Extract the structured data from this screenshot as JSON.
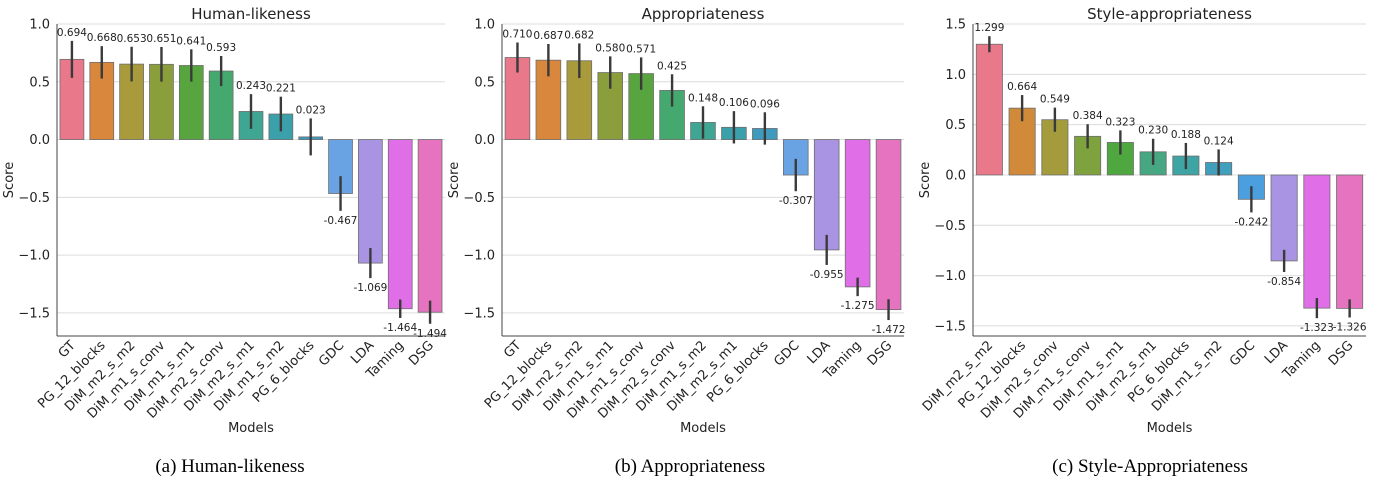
{
  "chart_data": [
    {
      "type": "bar",
      "title": "Human-likeness",
      "xlabel": "Models",
      "ylabel": "Score",
      "ylim": [
        -1.7,
        1.0
      ],
      "yticks": [
        1.0,
        0.5,
        0.0,
        -0.5,
        -1.0,
        -1.5
      ],
      "ytick_labels": [
        "1.0",
        "0.5",
        "0.0",
        "−0.5",
        "−1.0",
        "−1.5"
      ],
      "grid": true,
      "categories": [
        "GT",
        "PG_12_blocks",
        "DiM_m2_s_m2",
        "DiM_m1_s_conv",
        "DiM_m1_s_m1",
        "DiM_m2_s_conv",
        "DiM_m2_s_m1",
        "DiM_m1_s_m2",
        "PG_6_blocks",
        "GDC",
        "LDA",
        "Taming",
        "DSG"
      ],
      "values": [
        0.694,
        0.668,
        0.653,
        0.651,
        0.641,
        0.593,
        0.243,
        0.221,
        0.023,
        -0.467,
        -1.069,
        -1.464,
        -1.494
      ],
      "value_labels": [
        "0.694",
        "0.668",
        "0.653",
        "0.651",
        "0.641",
        "0.593",
        "0.243",
        "0.221",
        "0.023",
        "-0.467",
        "-1.069",
        "-1.464",
        "-1.494"
      ],
      "error": [
        0.16,
        0.14,
        0.15,
        0.15,
        0.14,
        0.13,
        0.15,
        0.15,
        0.16,
        0.15,
        0.13,
        0.08,
        0.1
      ],
      "colors": [
        "#e8788a",
        "#d9873d",
        "#a99b3c",
        "#8a9e3b",
        "#58a53f",
        "#44a86f",
        "#3ea693",
        "#3ca0aa",
        "#3f9bbd",
        "#6aa3e3",
        "#a894e3",
        "#df6ee7",
        "#e573bf"
      ]
    },
    {
      "type": "bar",
      "title": "Appropriateness",
      "xlabel": "Models",
      "ylabel": "Score",
      "ylim": [
        -1.7,
        1.0
      ],
      "yticks": [
        1.0,
        0.5,
        0.0,
        -0.5,
        -1.0,
        -1.5
      ],
      "ytick_labels": [
        "1.0",
        "0.5",
        "0.0",
        "−0.5",
        "−1.0",
        "−1.5"
      ],
      "grid": true,
      "categories": [
        "GT",
        "PG_12_blocks",
        "DiM_m2_s_m2",
        "DiM_m1_s_m1",
        "DiM_m1_s_conv",
        "DiM_m2_s_conv",
        "DiM_m1_s_m2",
        "DiM_m2_s_m1",
        "PG_6_blocks",
        "GDC",
        "LDA",
        "Taming",
        "DSG"
      ],
      "values": [
        0.71,
        0.687,
        0.682,
        0.58,
        0.571,
        0.425,
        0.148,
        0.106,
        0.096,
        -0.307,
        -0.955,
        -1.275,
        -1.472
      ],
      "value_labels": [
        "0.710",
        "0.687",
        "0.682",
        "0.580",
        "0.571",
        "0.425",
        "0.148",
        "0.106",
        "0.096",
        "-0.307",
        "-0.955",
        "-1.275",
        "-1.472"
      ],
      "error": [
        0.13,
        0.14,
        0.15,
        0.14,
        0.14,
        0.14,
        0.14,
        0.14,
        0.14,
        0.14,
        0.13,
        0.08,
        0.09
      ],
      "colors": [
        "#e8788a",
        "#d9873d",
        "#a99b3c",
        "#8a9e3b",
        "#58a53f",
        "#44a86f",
        "#3ea693",
        "#3ca0aa",
        "#3f9bbd",
        "#6aa3e3",
        "#a894e3",
        "#df6ee7",
        "#e573bf"
      ]
    },
    {
      "type": "bar",
      "title": "Style-appropriateness",
      "xlabel": "Models",
      "ylabel": "Score",
      "ylim": [
        -1.6,
        1.5
      ],
      "yticks": [
        1.5,
        1.0,
        0.5,
        0.0,
        -0.5,
        -1.0,
        -1.5
      ],
      "ytick_labels": [
        "1.5",
        "1.0",
        "0.5",
        "0.0",
        "−0.5",
        "−1.0",
        "−1.5"
      ],
      "grid": true,
      "categories": [
        "DiM_m2_s_m2",
        "PG_12_blocks",
        "DiM_m2_s_conv",
        "DiM_m1_s_conv",
        "DiM_m1_s_m1",
        "DiM_m2_s_m1",
        "PG_6_blocks",
        "DiM_m1_s_m2",
        "GDC",
        "LDA",
        "Taming",
        "DSG"
      ],
      "values": [
        1.299,
        0.664,
        0.549,
        0.384,
        0.323,
        0.23,
        0.188,
        0.124,
        -0.242,
        -0.854,
        -1.323,
        -1.326
      ],
      "value_labels": [
        "1.299",
        "0.664",
        "0.549",
        "0.384",
        "0.323",
        "0.230",
        "0.188",
        "0.124",
        "-0.242",
        "-0.854",
        "-1.323",
        "-1.326"
      ],
      "error": [
        0.08,
        0.13,
        0.12,
        0.12,
        0.12,
        0.13,
        0.13,
        0.13,
        0.13,
        0.11,
        0.1,
        0.09
      ],
      "colors": [
        "#e8788a",
        "#d08a3a",
        "#a39b3c",
        "#7ea23d",
        "#4fa83f",
        "#46a782",
        "#3fa4a4",
        "#3f9fbc",
        "#4c9fdf",
        "#a894e3",
        "#df6ee7",
        "#e573bf"
      ]
    }
  ],
  "captions": [
    "(a) Human-likeness",
    "(b) Appropriateness",
    "(c) Style-Appropriateness"
  ]
}
